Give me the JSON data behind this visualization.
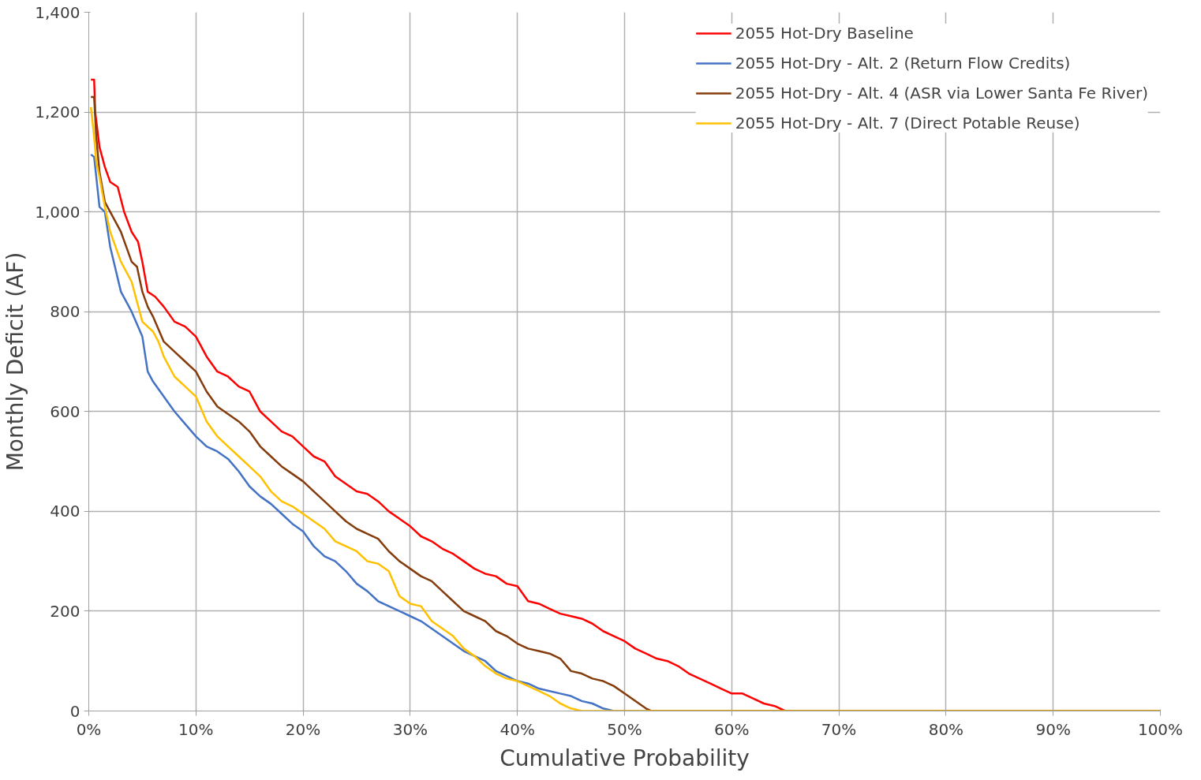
{
  "chart_data": {
    "type": "line",
    "xlabel": "Cumulative Probability",
    "ylabel": "Monthly Deficit (AF)",
    "xlim": [
      0,
      100
    ],
    "ylim": [
      0,
      1400
    ],
    "xticks": [
      {
        "value": 0,
        "label": "0%"
      },
      {
        "value": 10,
        "label": "10%"
      },
      {
        "value": 20,
        "label": "20%"
      },
      {
        "value": 30,
        "label": "30%"
      },
      {
        "value": 40,
        "label": "40%"
      },
      {
        "value": 50,
        "label": "50%"
      },
      {
        "value": 60,
        "label": "60%"
      },
      {
        "value": 70,
        "label": "70%"
      },
      {
        "value": 80,
        "label": "80%"
      },
      {
        "value": 90,
        "label": "90%"
      },
      {
        "value": 100,
        "label": "100%"
      }
    ],
    "yticks": [
      0,
      200,
      400,
      600,
      800,
      {
        "value": 1000,
        "label": "1,000"
      },
      {
        "value": 1200,
        "label": "1,200"
      },
      {
        "value": 1400,
        "label": "1,400"
      }
    ],
    "grid": true,
    "legend": "top right",
    "marker": "none",
    "line_style": "solid",
    "series": [
      {
        "name": "2055 Hot-Dry Baseline",
        "color": "#ff0000",
        "x": [
          0.2,
          0.5,
          0.6,
          1,
          1.5,
          2,
          2.7,
          3.3,
          4,
          4.6,
          5,
          5.5,
          6.2,
          7,
          8,
          9,
          10,
          11,
          12,
          13,
          14,
          15,
          16,
          17,
          18,
          19,
          20,
          21,
          22,
          23,
          24,
          25,
          26,
          27,
          28,
          29,
          30,
          31,
          32,
          33,
          34,
          35,
          36,
          37,
          38,
          39,
          40,
          41,
          42,
          43,
          44,
          45,
          46,
          47,
          48,
          49,
          50,
          51,
          52,
          53,
          54,
          55,
          56,
          57,
          58,
          59,
          60,
          61,
          62,
          63,
          64,
          65,
          100
        ],
        "values": [
          1265,
          1265,
          1200,
          1130,
          1090,
          1060,
          1050,
          1000,
          960,
          940,
          900,
          840,
          830,
          810,
          780,
          770,
          750,
          710,
          680,
          670,
          650,
          640,
          600,
          580,
          560,
          550,
          530,
          510,
          500,
          470,
          455,
          440,
          435,
          420,
          400,
          385,
          370,
          350,
          340,
          325,
          315,
          300,
          285,
          275,
          270,
          255,
          250,
          220,
          215,
          205,
          195,
          190,
          185,
          175,
          160,
          150,
          140,
          125,
          115,
          105,
          100,
          90,
          75,
          65,
          55,
          45,
          35,
          35,
          25,
          15,
          10,
          0,
          0
        ]
      },
      {
        "name": "2055 Hot-Dry - Alt. 2 (Return Flow Credits)",
        "color": "#4472c4",
        "x": [
          0.2,
          0.5,
          1,
          1.5,
          2,
          3,
          4,
          5,
          5.5,
          6,
          7,
          8,
          9,
          10,
          11,
          12,
          13,
          14,
          15,
          16,
          17,
          18,
          19,
          20,
          21,
          22,
          23,
          24,
          25,
          26,
          27,
          28,
          29,
          30,
          31,
          32,
          33,
          34,
          35,
          36,
          37,
          38,
          39,
          40,
          41,
          42,
          43,
          44,
          45,
          46,
          47,
          48,
          49,
          100
        ],
        "values": [
          1115,
          1110,
          1010,
          1000,
          930,
          840,
          800,
          750,
          680,
          660,
          630,
          600,
          575,
          550,
          530,
          520,
          505,
          480,
          450,
          430,
          415,
          395,
          375,
          360,
          330,
          310,
          300,
          280,
          255,
          240,
          220,
          210,
          200,
          190,
          180,
          165,
          150,
          135,
          120,
          110,
          100,
          80,
          70,
          60,
          55,
          45,
          40,
          35,
          30,
          20,
          15,
          5,
          0,
          0
        ]
      },
      {
        "name": "2055 Hot-Dry - Alt. 4 (ASR via Lower Santa Fe River)",
        "color": "#843c0c",
        "x": [
          0.2,
          0.5,
          0.7,
          1,
          1.5,
          2,
          3,
          3.5,
          4,
          4.5,
          5,
          5.5,
          6,
          7,
          8,
          9,
          10,
          11,
          12,
          13,
          14,
          15,
          16,
          17,
          18,
          19,
          20,
          21,
          22,
          23,
          24,
          25,
          26,
          27,
          28,
          29,
          30,
          31,
          32,
          33,
          34,
          35,
          36,
          37,
          38,
          39,
          40,
          41,
          42,
          43,
          44,
          45,
          46,
          47,
          48,
          49,
          50,
          51,
          52,
          52.5,
          100
        ],
        "values": [
          1230,
          1230,
          1150,
          1080,
          1020,
          1000,
          960,
          930,
          900,
          890,
          840,
          810,
          790,
          740,
          720,
          700,
          680,
          640,
          610,
          595,
          580,
          560,
          530,
          510,
          490,
          475,
          460,
          440,
          420,
          400,
          380,
          365,
          355,
          345,
          320,
          300,
          285,
          270,
          260,
          240,
          220,
          200,
          190,
          180,
          160,
          150,
          135,
          125,
          120,
          115,
          105,
          80,
          75,
          65,
          60,
          50,
          35,
          20,
          5,
          0,
          0
        ]
      },
      {
        "name": "2055 Hot-Dry - Alt. 7 (Direct Potable Reuse)",
        "color": "#ffc000",
        "x": [
          0.2,
          0.5,
          0.7,
          1,
          1.5,
          2,
          3,
          4,
          5,
          6,
          6.5,
          7,
          8,
          9,
          10,
          11,
          12,
          13,
          14,
          15,
          16,
          17,
          18,
          19,
          20,
          21,
          22,
          23,
          24,
          25,
          26,
          27,
          28,
          29,
          30,
          31,
          32,
          33,
          34,
          35,
          36,
          37,
          38,
          39,
          40,
          41,
          42,
          43,
          44,
          45,
          46,
          100
        ],
        "values": [
          1210,
          1150,
          1100,
          1070,
          1010,
          960,
          900,
          860,
          780,
          760,
          740,
          710,
          670,
          650,
          630,
          580,
          550,
          530,
          510,
          490,
          470,
          440,
          420,
          410,
          395,
          380,
          365,
          340,
          330,
          320,
          300,
          295,
          280,
          230,
          215,
          210,
          180,
          165,
          150,
          125,
          110,
          90,
          75,
          65,
          60,
          50,
          40,
          30,
          15,
          5,
          0,
          0
        ]
      }
    ]
  }
}
